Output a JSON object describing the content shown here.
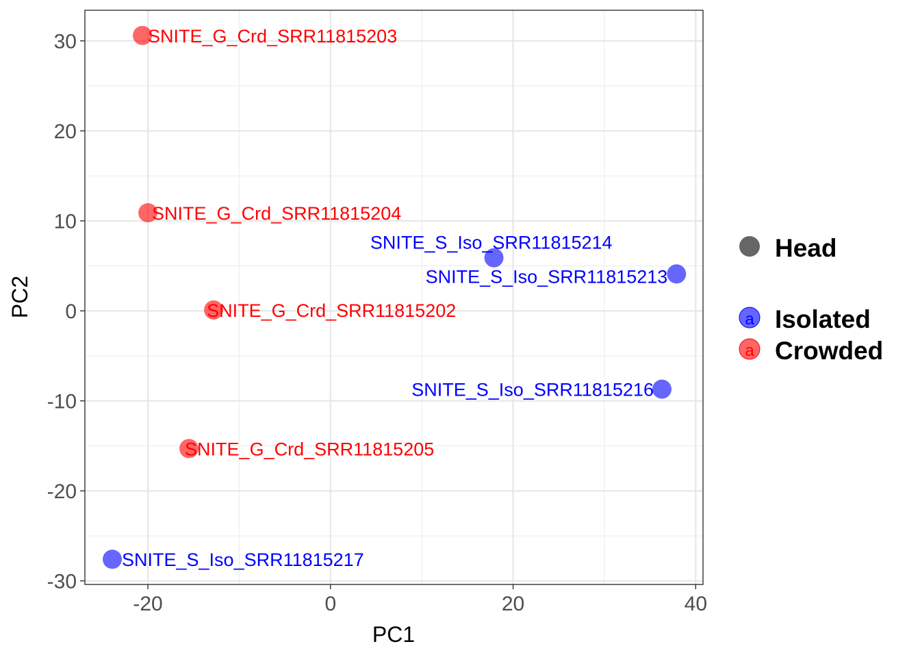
{
  "chart_data": {
    "type": "scatter",
    "xlabel": "PC1",
    "ylabel": "PC2",
    "xlim": [
      -26.9,
      40.8
    ],
    "ylim": [
      -30.4,
      33.4
    ],
    "xticks": [
      -20,
      0,
      20,
      40
    ],
    "yticks": [
      -30,
      -20,
      -10,
      0,
      10,
      20,
      30
    ],
    "grid": true,
    "legend_position": "right",
    "legend": {
      "shape_title": "Head",
      "shape_color": "#666666",
      "groups": [
        {
          "name": "Isolated",
          "color": "#0000ff",
          "key_glyph": "a"
        },
        {
          "name": "Crowded",
          "color": "#ff0000",
          "key_glyph": "a"
        }
      ]
    },
    "points": [
      {
        "label": "SNITE_G_Crd_SRR11815203",
        "group": "Crowded",
        "x": -20.6,
        "y": 30.6
      },
      {
        "label": "SNITE_G_Crd_SRR11815204",
        "group": "Crowded",
        "x": -20.0,
        "y": 10.9
      },
      {
        "label": "SNITE_S_Iso_SRR11815214",
        "group": "Isolated",
        "x": 17.9,
        "y": 5.9
      },
      {
        "label": "SNITE_S_Iso_SRR11815213",
        "group": "Isolated",
        "x": 37.9,
        "y": 4.1
      },
      {
        "label": "SNITE_G_Crd_SRR11815202",
        "group": "Crowded",
        "x": -12.8,
        "y": 0.1
      },
      {
        "label": "SNITE_S_Iso_SRR11815216",
        "group": "Isolated",
        "x": 36.3,
        "y": -8.7
      },
      {
        "label": "SNITE_G_Crd_SRR11815205",
        "group": "Crowded",
        "x": -15.5,
        "y": -15.3
      },
      {
        "label": "SNITE_S_Iso_SRR11815217",
        "group": "Isolated",
        "x": -23.9,
        "y": -27.6
      }
    ]
  }
}
